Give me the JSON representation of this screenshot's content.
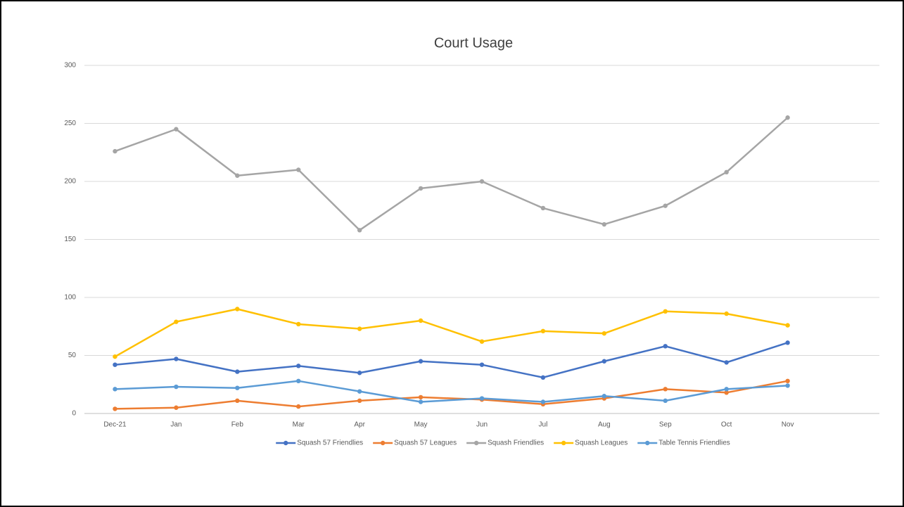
{
  "chart_data": {
    "type": "line",
    "title": "Court Usage",
    "categories": [
      "Dec-21",
      "Jan",
      "Feb",
      "Mar",
      "Apr",
      "May",
      "Jun",
      "Jul",
      "Aug",
      "Sep",
      "Oct",
      "Nov",
      null
    ],
    "series": [
      {
        "name": "Squash 57 Friendlies",
        "color": "#4472c4",
        "values": [
          42,
          47,
          36,
          41,
          35,
          45,
          42,
          31,
          45,
          58,
          44,
          61,
          null
        ]
      },
      {
        "name": "Squash 57 Leagues",
        "color": "#ed7d31",
        "values": [
          4,
          5,
          11,
          6,
          11,
          14,
          12,
          8,
          13,
          21,
          18,
          28,
          null
        ]
      },
      {
        "name": "Squash Friendlies",
        "color": "#a5a5a5",
        "values": [
          226,
          245,
          205,
          210,
          158,
          194,
          200,
          177,
          163,
          179,
          208,
          255,
          null
        ]
      },
      {
        "name": "Squash Leagues",
        "color": "#ffc000",
        "values": [
          49,
          79,
          90,
          77,
          73,
          80,
          62,
          71,
          69,
          88,
          86,
          76,
          null
        ]
      },
      {
        "name": "Table Tennis Friendlies",
        "color": "#5b9bd5",
        "values": [
          21,
          23,
          22,
          28,
          19,
          10,
          13,
          10,
          15,
          11,
          21,
          24,
          null
        ]
      }
    ],
    "ylim": [
      0,
      300
    ],
    "yticks": [
      0,
      50,
      100,
      150,
      200,
      250,
      300
    ],
    "grid": true,
    "legend": "bottom"
  }
}
